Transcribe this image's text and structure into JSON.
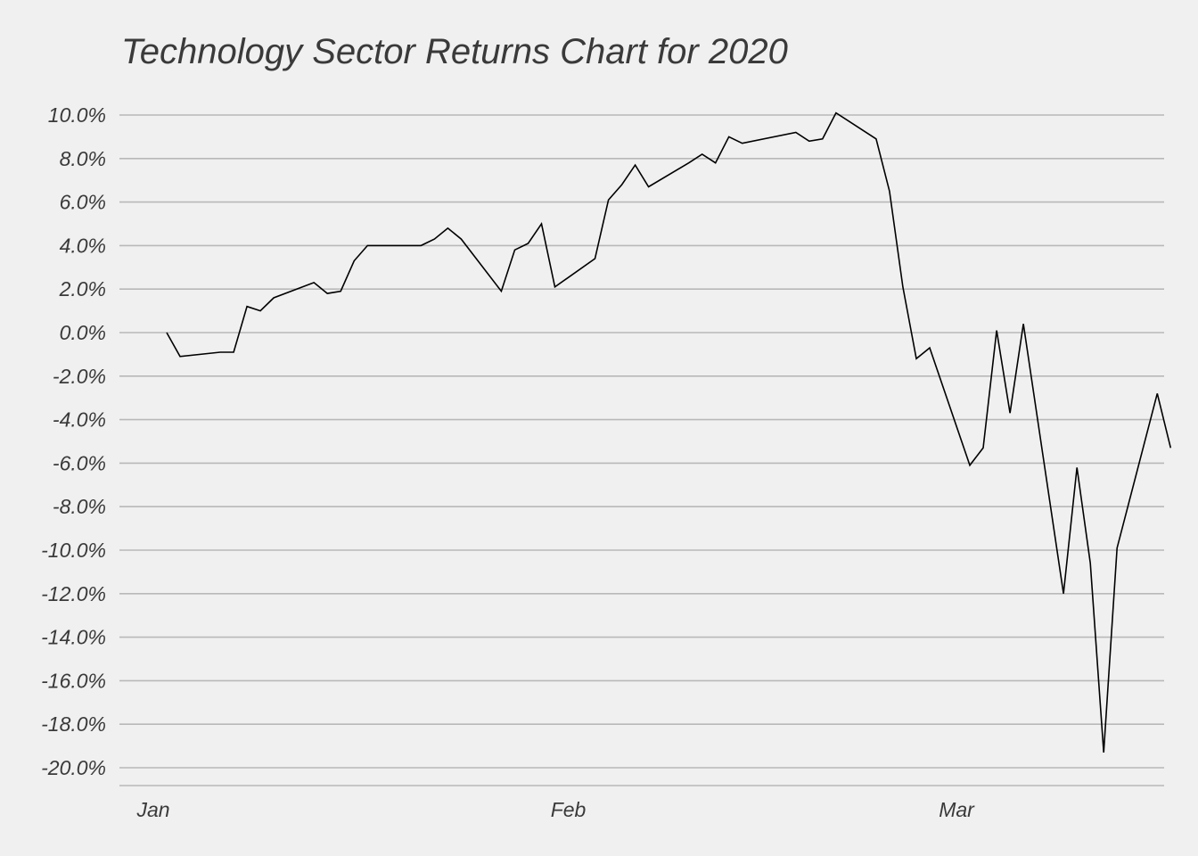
{
  "chart_data": {
    "type": "line",
    "title": "Technology Sector Returns Chart for 2020",
    "xlabel": "",
    "ylabel": "",
    "ylim": [
      -20.5,
      10.5
    ],
    "grid": true,
    "y_ticks": [
      10,
      8,
      6,
      4,
      2,
      0,
      -2,
      -4,
      -6,
      -8,
      -10,
      -12,
      -14,
      -16,
      -18,
      -20
    ],
    "y_tick_labels": [
      "10.0%",
      "8.0%",
      "6.0%",
      "4.0%",
      "2.0%",
      "0.0%",
      "-2.0%",
      "-4.0%",
      "-6.0%",
      "-8.0%",
      "-10.0%",
      "-12.0%",
      "-14.0%",
      "-16.0%",
      "-18.0%",
      "-20.0%"
    ],
    "x_ticks": [
      "2020-01-01",
      "2020-02-01",
      "2020-03-01"
    ],
    "x_tick_labels": [
      "Jan",
      "Feb",
      "Mar"
    ],
    "series": [
      {
        "x": [
          "2020-01-02",
          "2020-01-03",
          "2020-01-06",
          "2020-01-07",
          "2020-01-08",
          "2020-01-09",
          "2020-01-10",
          "2020-01-13",
          "2020-01-14",
          "2020-01-15",
          "2020-01-16",
          "2020-01-17",
          "2020-01-21",
          "2020-01-22",
          "2020-01-23",
          "2020-01-24",
          "2020-01-27",
          "2020-01-28",
          "2020-01-29",
          "2020-01-30",
          "2020-01-31",
          "2020-02-03",
          "2020-02-04",
          "2020-02-05",
          "2020-02-06",
          "2020-02-07",
          "2020-02-10",
          "2020-02-11",
          "2020-02-12",
          "2020-02-13",
          "2020-02-14",
          "2020-02-18",
          "2020-02-19",
          "2020-02-20",
          "2020-02-21",
          "2020-02-24",
          "2020-02-25",
          "2020-02-26",
          "2020-02-27",
          "2020-02-28",
          "2020-03-02",
          "2020-03-03",
          "2020-03-04",
          "2020-03-05",
          "2020-03-06",
          "2020-03-09",
          "2020-03-10",
          "2020-03-11",
          "2020-03-12",
          "2020-03-13",
          "2020-03-16",
          "2020-03-17"
        ],
        "values": [
          0.0,
          -1.1,
          -0.9,
          -0.9,
          1.2,
          1.0,
          1.6,
          2.3,
          1.8,
          1.9,
          3.3,
          4.0,
          4.0,
          4.3,
          4.8,
          4.3,
          1.9,
          3.8,
          4.1,
          5.0,
          2.1,
          3.4,
          6.1,
          6.8,
          7.7,
          6.7,
          7.8,
          8.2,
          7.8,
          9.0,
          8.7,
          9.2,
          8.8,
          8.9,
          10.1,
          8.9,
          6.5,
          2.1,
          -1.2,
          -0.7,
          -6.1,
          -5.3,
          0.1,
          -3.7,
          0.4,
          -12.0,
          -6.2,
          -10.6,
          -19.3,
          -9.9,
          -2.8,
          -5.3
        ]
      }
    ]
  }
}
